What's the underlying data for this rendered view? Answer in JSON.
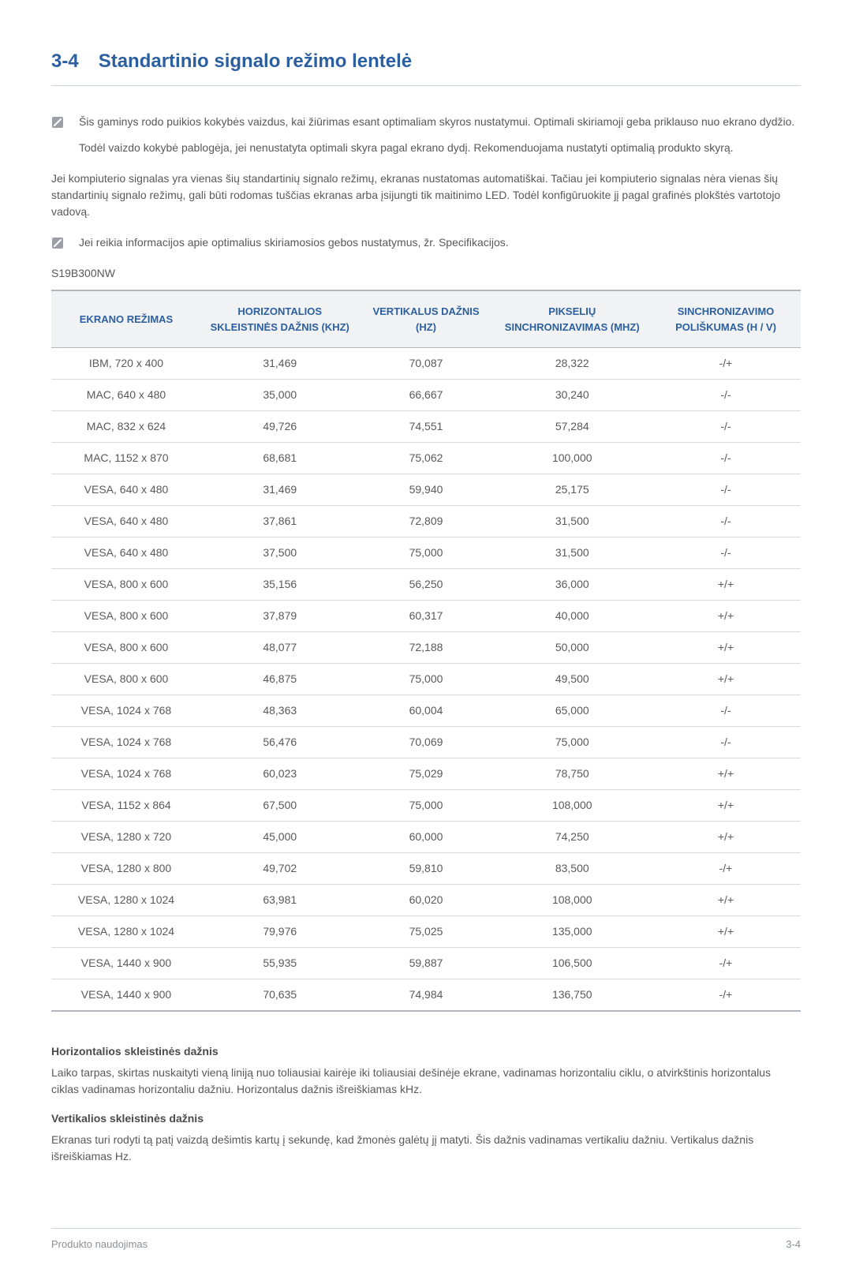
{
  "heading": {
    "number": "3-4",
    "title": "Standartinio signalo režimo lentelė"
  },
  "notes": [
    "Šis gaminys rodo puikios kokybės vaizdus, kai žiūrimas esant optimaliam skyros nustatymui. Optimali skiriamoji geba priklauso nuo ekrano dydžio.",
    "Todėl vaizdo kokybė pablogėja, jei nenustatyta optimali skyra pagal ekrano dydį. Rekomenduojama nustatyti optimalią produkto skyrą."
  ],
  "intro": "Jei kompiuterio signalas yra vienas šių standartinių signalo režimų, ekranas nustatomas automatiškai. Tačiau jei kompiuterio signalas nėra vienas šių standartinių signalo režimų, gali būti rodomas tuščias ekranas arba įsijungti tik maitinimo LED. Todėl konfigūruokite jį pagal grafinės plokštės vartotojo vadovą.",
  "note2": "Jei reikia informacijos apie optimalius skiriamosios gebos nustatymus, žr. Specifikacijos.",
  "model": "S19B300NW",
  "table": {
    "columns": [
      "EKRANO REŽIMAS",
      "HORIZONTALIOS SKLEISTINĖS DAŽNIS (KHZ)",
      "VERTIKALUS DAŽNIS (HZ)",
      "PIKSELIŲ SINCHRONIZAVIMAS (MHZ)",
      "SINCHRONIZAVIMO POLIŠKUMAS (H / V)"
    ],
    "rows": [
      [
        "IBM, 720 x 400",
        "31,469",
        "70,087",
        "28,322",
        "-/+"
      ],
      [
        "MAC, 640 x 480",
        "35,000",
        "66,667",
        "30,240",
        "-/-"
      ],
      [
        "MAC, 832 x 624",
        "49,726",
        "74,551",
        "57,284",
        "-/-"
      ],
      [
        "MAC, 1152 x 870",
        "68,681",
        "75,062",
        "100,000",
        "-/-"
      ],
      [
        "VESA, 640 x 480",
        "31,469",
        "59,940",
        "25,175",
        "-/-"
      ],
      [
        "VESA, 640 x 480",
        "37,861",
        "72,809",
        "31,500",
        "-/-"
      ],
      [
        "VESA, 640 x 480",
        "37,500",
        "75,000",
        "31,500",
        "-/-"
      ],
      [
        "VESA, 800 x 600",
        "35,156",
        "56,250",
        "36,000",
        "+/+"
      ],
      [
        "VESA, 800 x 600",
        "37,879",
        "60,317",
        "40,000",
        "+/+"
      ],
      [
        "VESA, 800 x 600",
        "48,077",
        "72,188",
        "50,000",
        "+/+"
      ],
      [
        "VESA, 800 x 600",
        "46,875",
        "75,000",
        "49,500",
        "+/+"
      ],
      [
        "VESA, 1024 x 768",
        "48,363",
        "60,004",
        "65,000",
        "-/-"
      ],
      [
        "VESA, 1024 x 768",
        "56,476",
        "70,069",
        "75,000",
        "-/-"
      ],
      [
        "VESA, 1024 x 768",
        "60,023",
        "75,029",
        "78,750",
        "+/+"
      ],
      [
        "VESA, 1152 x 864",
        "67,500",
        "75,000",
        "108,000",
        "+/+"
      ],
      [
        "VESA, 1280 x 720",
        "45,000",
        "60,000",
        "74,250",
        "+/+"
      ],
      [
        "VESA, 1280 x 800",
        "49,702",
        "59,810",
        "83,500",
        "-/+"
      ],
      [
        "VESA, 1280 x 1024",
        "63,981",
        "60,020",
        "108,000",
        "+/+"
      ],
      [
        "VESA, 1280 x 1024",
        "79,976",
        "75,025",
        "135,000",
        "+/+"
      ],
      [
        "VESA, 1440 x 900",
        "55,935",
        "59,887",
        "106,500",
        "-/+"
      ],
      [
        "VESA, 1440 x 900",
        "70,635",
        "74,984",
        "136,750",
        "-/+"
      ]
    ],
    "column_widths": [
      "20%",
      "21%",
      "18%",
      "21%",
      "20%"
    ]
  },
  "definitions": [
    {
      "title": "Horizontalios skleistinės dažnis",
      "body": "Laiko tarpas, skirtas nuskaityti vieną liniją nuo toliausiai kairėje iki toliausiai dešinėje ekrane, vadinamas horizontaliu ciklu, o atvirkštinis horizontalus ciklas vadinamas horizontaliu dažniu. Horizontalus dažnis išreiškiamas kHz."
    },
    {
      "title": "Vertikalios skleistinės dažnis",
      "body": "Ekranas turi rodyti tą patį vaizdą dešimtis kartų į sekundę, kad žmonės galėtų jį matyti. Šis dažnis vadinamas vertikaliu dažniu. Vertikalus dažnis išreiškiamas Hz."
    }
  ],
  "footer": {
    "left": "Produkto naudojimas",
    "right": "3-4"
  },
  "colors": {
    "heading_blue": "#2b5fa0",
    "body_text": "#595959",
    "rule_light": "#cfd4d9",
    "table_border_heavy": "#b0b6bc",
    "table_border_light": "#d7dade",
    "thead_bg": "#f1f2f3",
    "footer_text": "#8a8f95",
    "icon_fill": "#9aa0a6"
  }
}
